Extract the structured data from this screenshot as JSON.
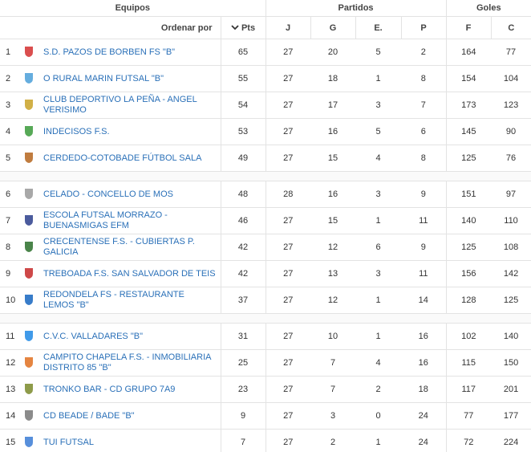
{
  "table": {
    "group_headers": [
      "Equipos",
      "Partidos",
      "Goles"
    ],
    "sort_label": "Ordenar por",
    "columns": [
      "Pts",
      "J",
      "G",
      "E.",
      "P",
      "F",
      "C"
    ],
    "rows": [
      [
        1,
        "S.D. PAZOS DE BORBEN FS \"B\"",
        65,
        27,
        20,
        5,
        2,
        164,
        77
      ],
      [
        2,
        "O RURAL MARIN FUTSAL \"B\"",
        55,
        27,
        18,
        1,
        8,
        154,
        104
      ],
      [
        3,
        "CLUB DEPORTIVO LA PEÑA - ANGEL VERISIMO",
        54,
        27,
        17,
        3,
        7,
        173,
        123
      ],
      [
        4,
        "INDECISOS F.S.",
        53,
        27,
        16,
        5,
        6,
        145,
        90
      ],
      [
        5,
        "CERDEDO-COTOBADE FÚTBOL SALA",
        49,
        27,
        15,
        4,
        8,
        125,
        76
      ],
      [
        6,
        "CELADO - CONCELLO DE MOS",
        48,
        28,
        16,
        3,
        9,
        151,
        97
      ],
      [
        7,
        "ESCOLA FUTSAL MORRAZO - BUENASMIGAS EFM",
        46,
        27,
        15,
        1,
        11,
        140,
        110
      ],
      [
        8,
        "CRECENTENSE F.S. - CUBIERTAS P. GALICIA",
        42,
        27,
        12,
        6,
        9,
        125,
        108
      ],
      [
        9,
        "TREBOADA F.S. SAN SALVADOR DE TEIS",
        42,
        27,
        13,
        3,
        11,
        156,
        142
      ],
      [
        10,
        "REDONDELA FS - RESTAURANTE LEMOS \"B\"",
        37,
        27,
        12,
        1,
        14,
        128,
        125
      ],
      [
        11,
        "C.V.C. VALLADARES \"B\"",
        31,
        27,
        10,
        1,
        16,
        102,
        140
      ],
      [
        12,
        "CAMPITO CHAPELA F.S. - INMOBILIARIA DISTRITO 85 \"B\"",
        25,
        27,
        7,
        4,
        16,
        115,
        150
      ],
      [
        13,
        "TRONKO BAR - CD GRUPO 7A9",
        23,
        27,
        7,
        2,
        18,
        117,
        201
      ],
      [
        14,
        "CD BEADE / BADE \"B\"",
        9,
        27,
        3,
        0,
        24,
        77,
        177
      ],
      [
        15,
        "TUI FUTSAL",
        7,
        27,
        2,
        1,
        24,
        72,
        224
      ]
    ]
  }
}
